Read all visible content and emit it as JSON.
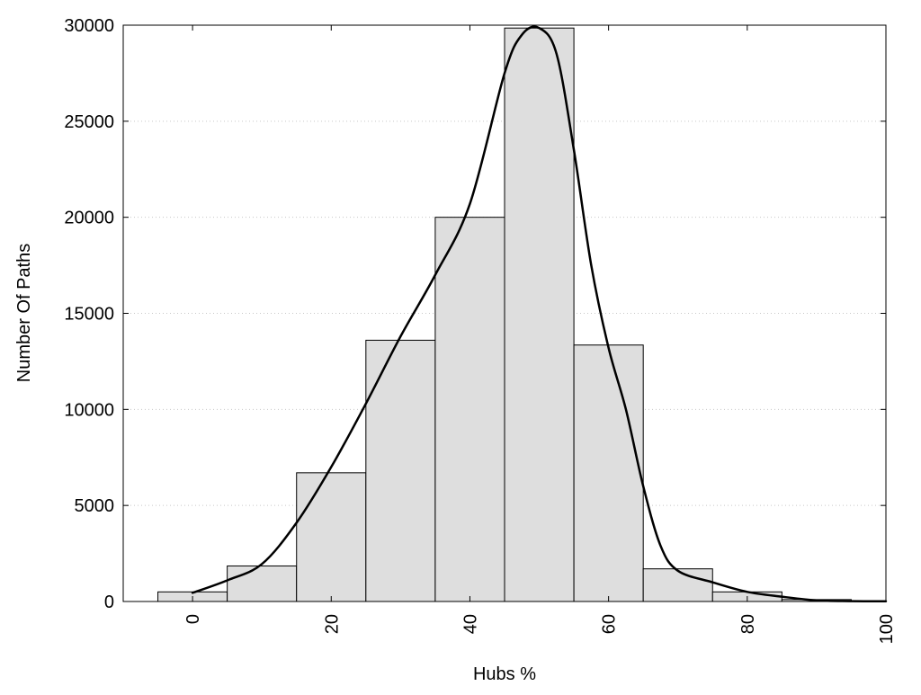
{
  "chart_data": {
    "type": "bar",
    "title": "",
    "xlabel": "Hubs %",
    "ylabel": "Number Of Paths",
    "xlim": [
      -10,
      100
    ],
    "ylim": [
      0,
      30000
    ],
    "grid": true,
    "x_ticks": [
      "0",
      "20",
      "40",
      "60",
      "80",
      "100"
    ],
    "y_ticks": [
      "0",
      "5000",
      "10000",
      "15000",
      "20000",
      "25000",
      "30000"
    ],
    "bins": [
      {
        "start": -5,
        "end": 5,
        "value": 500
      },
      {
        "start": 5,
        "end": 15,
        "value": 1850
      },
      {
        "start": 15,
        "end": 25,
        "value": 6700
      },
      {
        "start": 25,
        "end": 35,
        "value": 13600
      },
      {
        "start": 35,
        "end": 45,
        "value": 20000
      },
      {
        "start": 45,
        "end": 55,
        "value": 29850
      },
      {
        "start": 55,
        "end": 65,
        "value": 13350
      },
      {
        "start": 65,
        "end": 75,
        "value": 1700
      },
      {
        "start": 75,
        "end": 85,
        "value": 500
      },
      {
        "start": 85,
        "end": 95,
        "value": 100
      }
    ],
    "curve": {
      "x": [
        0,
        5,
        10,
        15,
        20,
        25,
        30,
        35,
        40,
        45,
        47.5,
        50,
        52.5,
        55,
        57.5,
        60,
        62.5,
        65,
        67.5,
        70,
        75,
        80,
        85,
        90,
        95,
        100
      ],
      "y": [
        450,
        1100,
        1950,
        4100,
        7000,
        10300,
        13800,
        17000,
        20700,
        27500,
        29500,
        29850,
        28500,
        23500,
        17500,
        13200,
        10000,
        6000,
        2900,
        1600,
        1000,
        500,
        250,
        60,
        20,
        10
      ]
    },
    "colors": {
      "bar_fill": "#dedede",
      "bar_stroke": "#000000",
      "curve": "#000000",
      "grid": "#c8c8c8"
    }
  }
}
